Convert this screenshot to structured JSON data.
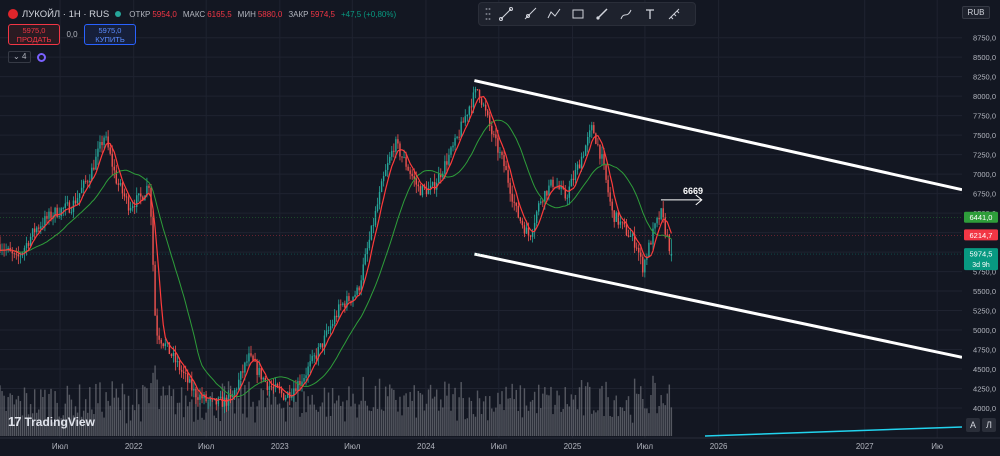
{
  "header": {
    "symbol": "ЛУКОЙЛ · 1Н · RUS",
    "open_label": "ОТКР",
    "open_value": "5954,0",
    "high_label": "МАКС",
    "high_value": "6165,5",
    "low_label": "МИН",
    "low_value": "5880,0",
    "close_label": "ЗАКР",
    "close_value": "5974,5",
    "change": "+47,5 (+0,80%)"
  },
  "trade": {
    "sell_price": "5975,0",
    "sell_label": "ПРОДАТЬ",
    "spread": "0,0",
    "buy_price": "5975,0",
    "buy_label": "КУПИТЬ"
  },
  "indicators": {
    "collapsed_count": "4"
  },
  "currency": "RUB",
  "branding": "TradingView",
  "colors": {
    "background": "#131722",
    "up": "#26a69a",
    "down": "#ef5350",
    "ma_fast": "#ff3b3b",
    "ma_slow": "#2e9d3a",
    "channel": "#ffffff",
    "volume": "#8a8d94",
    "grid": "#1f2330"
  },
  "chart_data": {
    "type": "candlestick",
    "y_axis": {
      "ticks": [
        4000,
        4250,
        4500,
        4750,
        5000,
        5250,
        5500,
        5750,
        6000,
        6250,
        6500,
        6750,
        7000,
        7250,
        7500,
        7750,
        8000,
        8250,
        8500,
        8750
      ],
      "tick_labels": [
        "4000,0",
        "4250,0",
        "4500,0",
        "4750,0",
        "5000,0",
        "5250,0",
        "5500,0",
        "5750,0",
        "6000,0",
        "6250,0",
        "6500,0",
        "6750,0",
        "7000,0",
        "7250,0",
        "7500,0",
        "7750,0",
        "8000,0",
        "8250,0",
        "8500,0",
        "8750,0"
      ],
      "ylim": [
        4000,
        8900
      ]
    },
    "x_axis": {
      "labels": [
        "Июл",
        "2022",
        "Июл",
        "2023",
        "Июл",
        "2024",
        "Июл",
        "2025",
        "Июл",
        "2026",
        "2027",
        "Ию"
      ],
      "dates": [
        "2021-07-01",
        "2022-01-01",
        "2022-07-01",
        "2023-01-01",
        "2023-07-01",
        "2024-01-01",
        "2024-07-01",
        "2025-01-01",
        "2025-07-01",
        "2026-01-01",
        "2027-01-01",
        "2027-07-01"
      ],
      "xlim": [
        "2021-02-01",
        "2027-09-01"
      ]
    },
    "price_path": [
      [
        "2021-02-01",
        6100
      ],
      [
        "2021-03-15",
        5900
      ],
      [
        "2021-05-01",
        6300
      ],
      [
        "2021-06-15",
        6500
      ],
      [
        "2021-08-01",
        6600
      ],
      [
        "2021-09-15",
        7000
      ],
      [
        "2021-10-20",
        7500
      ],
      [
        "2021-11-20",
        6900
      ],
      [
        "2021-12-20",
        6600
      ],
      [
        "2022-01-20",
        6700
      ],
      [
        "2022-02-10",
        6900
      ],
      [
        "2022-02-25",
        5000
      ],
      [
        "2022-04-15",
        4600
      ],
      [
        "2022-06-01",
        4200
      ],
      [
        "2022-07-15",
        4050
      ],
      [
        "2022-09-01",
        4100
      ],
      [
        "2022-10-15",
        4650
      ],
      [
        "2022-12-01",
        4300
      ],
      [
        "2023-01-15",
        4150
      ],
      [
        "2023-03-01",
        4400
      ],
      [
        "2023-04-15",
        4800
      ],
      [
        "2023-06-01",
        5300
      ],
      [
        "2023-07-15",
        5500
      ],
      [
        "2023-08-15",
        6200
      ],
      [
        "2023-09-15",
        6900
      ],
      [
        "2023-10-15",
        7400
      ],
      [
        "2023-11-15",
        7100
      ],
      [
        "2023-12-15",
        6800
      ],
      [
        "2024-01-15",
        6800
      ],
      [
        "2024-02-15",
        7100
      ],
      [
        "2024-03-15",
        7400
      ],
      [
        "2024-04-20",
        7900
      ],
      [
        "2024-05-10",
        8100
      ],
      [
        "2024-06-15",
        7500
      ],
      [
        "2024-07-15",
        7100
      ],
      [
        "2024-08-15",
        6500
      ],
      [
        "2024-09-15",
        6200
      ],
      [
        "2024-10-15",
        6700
      ],
      [
        "2024-11-15",
        6900
      ],
      [
        "2024-12-15",
        6700
      ],
      [
        "2025-01-15",
        7100
      ],
      [
        "2025-02-20",
        7600
      ],
      [
        "2025-03-15",
        7200
      ],
      [
        "2025-04-10",
        6500
      ],
      [
        "2025-05-10",
        6300
      ],
      [
        "2025-06-10",
        6100
      ],
      [
        "2025-06-25",
        5800
      ],
      [
        "2025-07-25",
        6300
      ],
      [
        "2025-08-10",
        6500
      ],
      [
        "2025-08-25",
        6200
      ],
      [
        "2025-09-05",
        5974.5
      ]
    ],
    "price_labels": [
      {
        "value": 6441.0,
        "text": "6441,0",
        "color": "#2e9d3a"
      },
      {
        "value": 6214.7,
        "text": "6214,7",
        "color": "#f23645"
      },
      {
        "value": 5974.5,
        "text": "5974,5",
        "sub": "3d 9h",
        "color": "#089981"
      }
    ],
    "channel": {
      "upper": [
        [
          "2024-05-01",
          8200
        ],
        [
          "2027-09-01",
          6800
        ]
      ],
      "lower": [
        [
          "2024-05-01",
          5975
        ],
        [
          "2027-09-01",
          4650
        ]
      ]
    },
    "annotation": {
      "text": "6669",
      "date": "2025-08-10",
      "value": 6669,
      "arrow_to": "2025-11-20"
    },
    "volume": "histogram, bottom pane"
  }
}
